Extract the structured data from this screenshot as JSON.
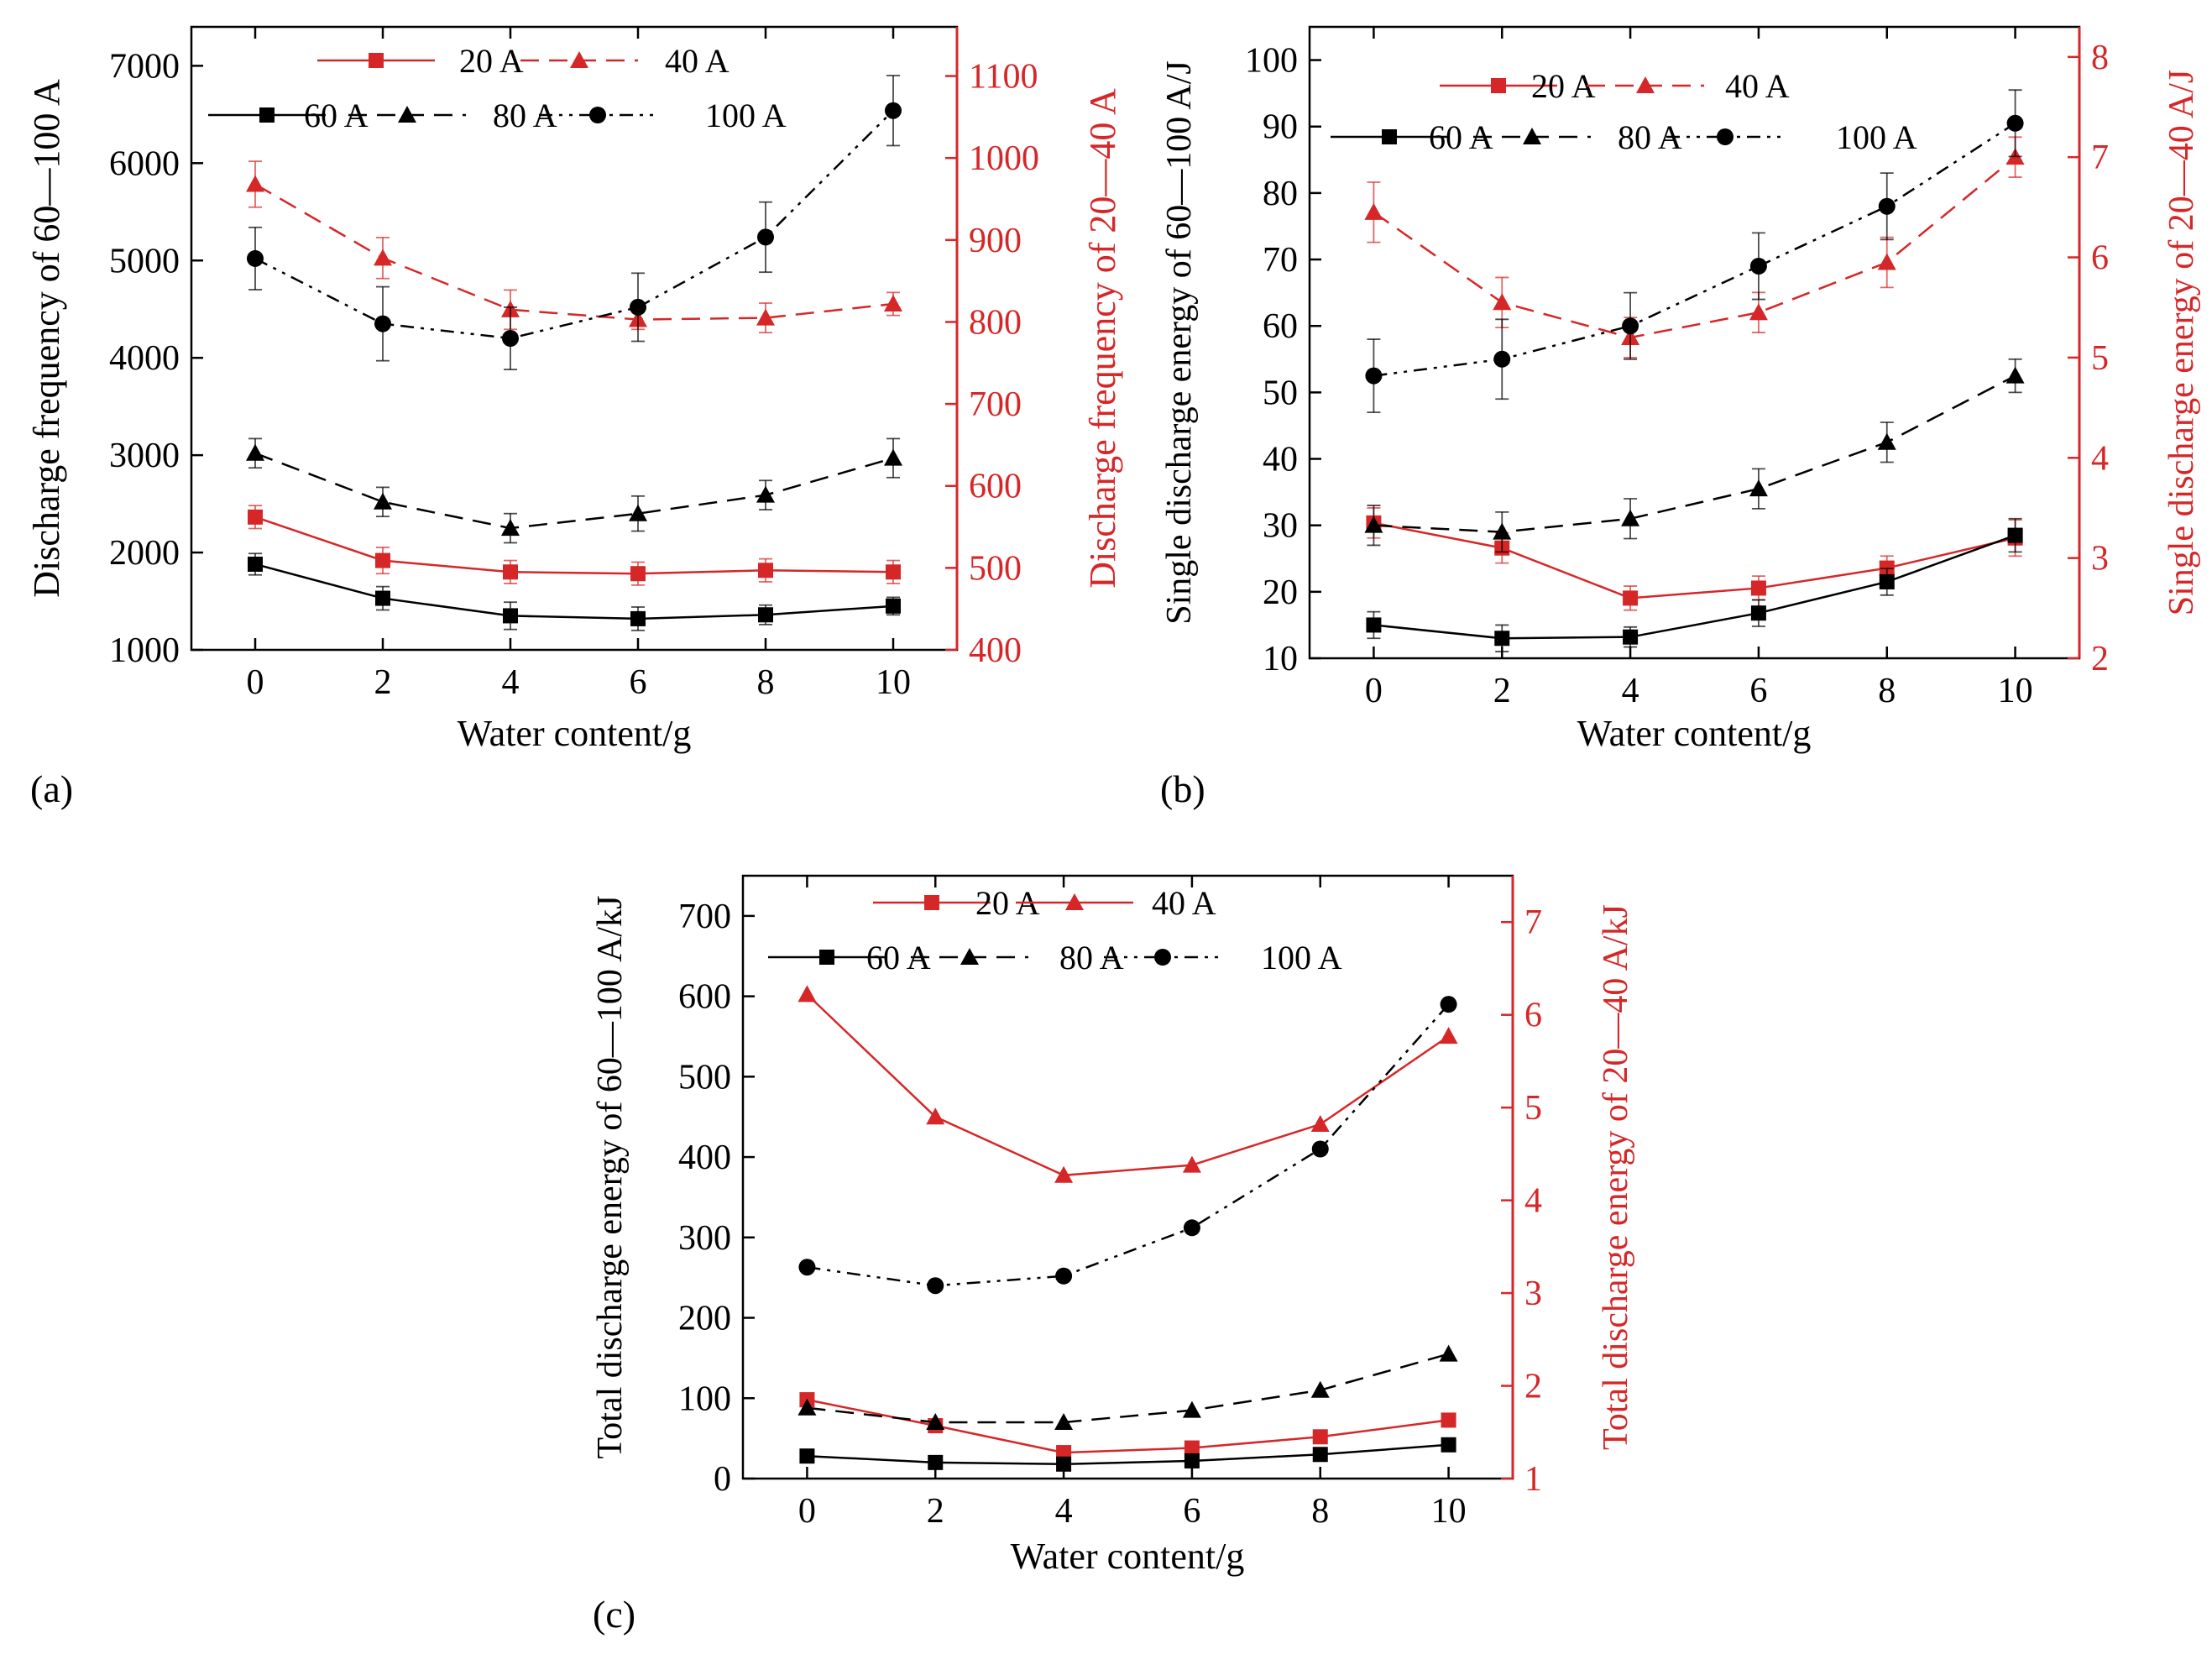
{
  "colors": {
    "black": "#000000",
    "red": "#d62728"
  },
  "chart_data": [
    {
      "panel_label": "(a)",
      "type": "line",
      "xlabel": "Water content/g",
      "ylabel_left": "Discharge frequency of 60—100 A",
      "ylabel_right": "Discharge frequency of 20—40 A",
      "x": [
        0,
        2,
        4,
        6,
        8,
        10
      ],
      "xlim": [
        -1,
        11
      ],
      "xticks": [
        0,
        2,
        4,
        6,
        8,
        10
      ],
      "ylim_left": [
        1000,
        7400
      ],
      "yticks_left": [
        1000,
        2000,
        3000,
        4000,
        5000,
        6000,
        7000
      ],
      "ylim_right": [
        400,
        1160
      ],
      "yticks_right": [
        400,
        500,
        600,
        700,
        800,
        900,
        1000,
        1100
      ],
      "legend_top": [
        {
          "series": 0
        },
        {
          "series": 1
        }
      ],
      "legend_bottom": [
        {
          "series": 2
        },
        {
          "series": 3
        },
        {
          "series": 4
        }
      ],
      "series": [
        {
          "name": "20 A",
          "axis": "right",
          "color": "red",
          "marker": "square",
          "dash": "solid",
          "values": [
            562,
            509,
            495,
            493,
            497,
            495
          ],
          "errors": [
            14,
            16,
            14,
            14,
            14,
            14
          ]
        },
        {
          "name": "40 A",
          "axis": "right",
          "color": "red",
          "marker": "triangle",
          "dash": "dashed",
          "values": [
            968,
            878,
            815,
            803,
            805,
            822
          ],
          "errors": [
            28,
            25,
            24,
            12,
            18,
            14
          ]
        },
        {
          "name": "60 A",
          "axis": "left",
          "color": "black",
          "marker": "square",
          "dash": "solid",
          "values": [
            1880,
            1530,
            1350,
            1320,
            1360,
            1450
          ],
          "errors": [
            110,
            120,
            140,
            120,
            100,
            90
          ]
        },
        {
          "name": "80 A",
          "axis": "left",
          "color": "black",
          "marker": "triangle",
          "dash": "dashed",
          "values": [
            3020,
            2520,
            2250,
            2400,
            2590,
            2970
          ],
          "errors": [
            150,
            150,
            150,
            180,
            150,
            200
          ]
        },
        {
          "name": "100 A",
          "axis": "left",
          "color": "black",
          "marker": "circle",
          "dash": "dashdotdot",
          "values": [
            5020,
            4350,
            4200,
            4520,
            5240,
            6540
          ],
          "errors": [
            320,
            380,
            320,
            350,
            360,
            360
          ]
        }
      ]
    },
    {
      "panel_label": "(b)",
      "type": "line",
      "xlabel": "Water content/g",
      "ylabel_left": "Single discharge energy of 60—100 A/J",
      "ylabel_right": "Single discharge energy of 20—40 A/J",
      "x": [
        0,
        2,
        4,
        6,
        8,
        10
      ],
      "xlim": [
        -1,
        11
      ],
      "xticks": [
        0,
        2,
        4,
        6,
        8,
        10
      ],
      "ylim_left": [
        10,
        105
      ],
      "yticks_left": [
        10,
        20,
        30,
        40,
        50,
        60,
        70,
        80,
        90,
        100
      ],
      "ylim_right": [
        2,
        8.3
      ],
      "yticks_right": [
        2,
        3,
        4,
        5,
        6,
        7,
        8
      ],
      "legend_top": [
        {
          "series": 0
        },
        {
          "series": 1
        }
      ],
      "legend_bottom": [
        {
          "series": 2
        },
        {
          "series": 3
        },
        {
          "series": 4
        }
      ],
      "series": [
        {
          "name": "20 A",
          "axis": "right",
          "color": "red",
          "marker": "square",
          "dash": "solid",
          "values": [
            3.35,
            3.1,
            2.6,
            2.7,
            2.9,
            3.2
          ],
          "errors": [
            0.15,
            0.15,
            0.12,
            0.12,
            0.12,
            0.18
          ]
        },
        {
          "name": "40 A",
          "axis": "right",
          "color": "red",
          "marker": "triangle",
          "dash": "dashed",
          "values": [
            6.45,
            5.55,
            5.2,
            5.45,
            5.95,
            7.0
          ],
          "errors": [
            0.3,
            0.25,
            0.2,
            0.2,
            0.25,
            0.2
          ]
        },
        {
          "name": "60 A",
          "axis": "left",
          "color": "black",
          "marker": "square",
          "dash": "solid",
          "values": [
            15,
            13,
            13.2,
            16.8,
            21.5,
            28.5
          ],
          "errors": [
            2,
            2,
            1.5,
            2,
            2,
            2.5
          ]
        },
        {
          "name": "80 A",
          "axis": "left",
          "color": "black",
          "marker": "triangle",
          "dash": "dashed",
          "values": [
            30,
            29,
            31,
            35.5,
            42.5,
            52.5
          ],
          "errors": [
            3,
            3,
            3,
            3,
            3,
            2.5
          ]
        },
        {
          "name": "100 A",
          "axis": "left",
          "color": "black",
          "marker": "circle",
          "dash": "dashdotdot",
          "values": [
            52.5,
            55,
            60,
            69,
            78,
            90.5
          ],
          "errors": [
            5.5,
            6,
            5,
            5,
            5,
            5
          ]
        }
      ]
    },
    {
      "panel_label": "(c)",
      "type": "line",
      "xlabel": "Water content/g",
      "ylabel_left": "Total discharge energy of 60—100 A/kJ",
      "ylabel_right": "Total discharge energy of 20—40 A/kJ",
      "x": [
        0,
        2,
        4,
        6,
        8,
        10
      ],
      "xlim": [
        -1,
        11
      ],
      "xticks": [
        0,
        2,
        4,
        6,
        8,
        10
      ],
      "ylim_left": [
        0,
        750
      ],
      "yticks_left": [
        0,
        100,
        200,
        300,
        400,
        500,
        600,
        700
      ],
      "ylim_right": [
        1,
        7.5
      ],
      "yticks_right": [
        1,
        2,
        3,
        4,
        5,
        6,
        7
      ],
      "legend_top": [
        {
          "series": 0
        },
        {
          "series": 1
        }
      ],
      "legend_bottom": [
        {
          "series": 2
        },
        {
          "series": 3
        },
        {
          "series": 4
        }
      ],
      "series": [
        {
          "name": "20 A",
          "axis": "right",
          "color": "red",
          "marker": "square",
          "dash": "solid",
          "values": [
            1.85,
            1.57,
            1.28,
            1.33,
            1.45,
            1.63
          ],
          "errors": []
        },
        {
          "name": "40 A",
          "axis": "right",
          "color": "red",
          "marker": "triangle",
          "dash": "solid",
          "values": [
            6.22,
            4.9,
            4.27,
            4.38,
            4.82,
            5.77
          ],
          "errors": []
        },
        {
          "name": "60 A",
          "axis": "left",
          "color": "black",
          "marker": "square",
          "dash": "solid",
          "values": [
            28,
            20,
            18,
            22,
            30,
            42
          ],
          "errors": []
        },
        {
          "name": "80 A",
          "axis": "left",
          "color": "black",
          "marker": "triangle",
          "dash": "dashed",
          "values": [
            88,
            70,
            70,
            85,
            110,
            155
          ],
          "errors": []
        },
        {
          "name": "100 A",
          "axis": "left",
          "color": "black",
          "marker": "circle",
          "dash": "dashdotdot",
          "values": [
            263,
            240,
            252,
            312,
            410,
            590
          ],
          "errors": []
        }
      ]
    }
  ]
}
